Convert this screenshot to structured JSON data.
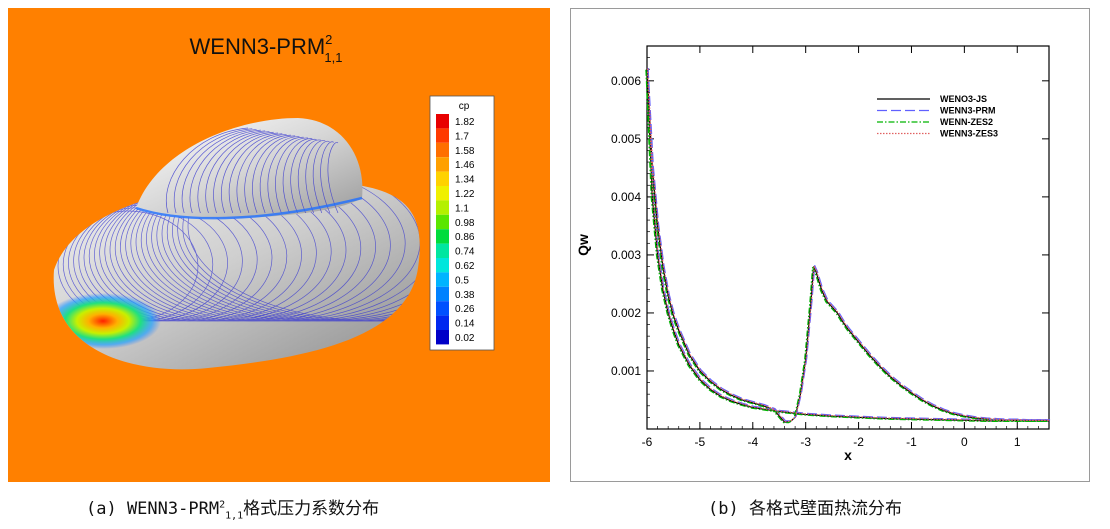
{
  "panel_a": {
    "title_main": "WENN3-PRM",
    "title_sup": "2",
    "title_sub": "1,1",
    "background_color": "#FF8000",
    "colorbar": {
      "title": "cp",
      "levels": [
        "1.82",
        "1.7",
        "1.58",
        "1.46",
        "1.34",
        "1.22",
        "1.1",
        "0.98",
        "0.86",
        "0.74",
        "0.62",
        "0.5",
        "0.38",
        "0.26",
        "0.14",
        "0.02"
      ],
      "colors": [
        "#e80000",
        "#ff3a00",
        "#ff6f00",
        "#ffa000",
        "#ffd200",
        "#f0f000",
        "#b4f000",
        "#5ae600",
        "#00dc3c",
        "#00e6a0",
        "#00e6dc",
        "#00b4ff",
        "#0082ff",
        "#0050ff",
        "#0028f0",
        "#0000c8"
      ]
    }
  },
  "panel_b": {
    "chart_data": {
      "type": "line",
      "xlabel": "x",
      "ylabel": "Qw",
      "xlim": [
        -6,
        1.6
      ],
      "ylim": [
        0,
        0.0066
      ],
      "x_ticks": [
        "-6",
        "-5",
        "-4",
        "-3",
        "-2",
        "-1",
        "0",
        "1"
      ],
      "y_ticks": [
        "0.001",
        "0.002",
        "0.003",
        "0.004",
        "0.005",
        "0.006"
      ],
      "legend_position": "top-right",
      "series": [
        {
          "name": "WENO3-JS",
          "color": "#000000",
          "dash": ""
        },
        {
          "name": "WENN3-PRM",
          "color": "#6060ff",
          "dash": "10,4"
        },
        {
          "name": "WENN-ZES2",
          "color": "#00b400",
          "dash": "6,2,1.5,2"
        },
        {
          "name": "WENN3-ZES3",
          "color": "#e06060",
          "dash": "1.5,1.5"
        }
      ],
      "curves": {
        "upper": {
          "x": [
            -6,
            -5.9,
            -5.8,
            -5.7,
            -5.6,
            -5.5,
            -5.4,
            -5.2,
            -5.0,
            -4.8,
            -4.6,
            -4.4,
            -4.2,
            -4.0,
            -3.8,
            -3.6,
            -3.4,
            -3.3,
            -3.2,
            -3.1,
            -3.0,
            -2.9,
            -2.85,
            -2.8,
            -2.7,
            -2.6,
            -2.5,
            -2.4,
            -2.3,
            -2.2,
            -2.0,
            -1.8,
            -1.6,
            -1.4,
            -1.2,
            -1.0,
            -0.8,
            -0.6,
            -0.4,
            -0.2,
            0.0,
            0.2,
            0.4,
            0.6,
            0.8,
            1.0,
            1.2,
            1.4,
            1.6
          ],
          "y": [
            0.0062,
            0.0045,
            0.0035,
            0.0028,
            0.0023,
            0.00195,
            0.0017,
            0.00128,
            0.001,
            0.00082,
            0.00068,
            0.00058,
            0.0005,
            0.00045,
            0.0004,
            0.00033,
            0.00012,
            0.00012,
            0.0002,
            0.0006,
            0.0012,
            0.0022,
            0.0028,
            0.0027,
            0.0024,
            0.0022,
            0.0021,
            0.002,
            0.00185,
            0.00172,
            0.0015,
            0.00128,
            0.00108,
            0.0009,
            0.00075,
            0.00062,
            0.0005,
            0.0004,
            0.00032,
            0.00026,
            0.00022,
            0.00019,
            0.00017,
            0.00016,
            0.00015,
            0.00015,
            0.00014,
            0.00014,
            0.00014
          ]
        },
        "lower": {
          "x": [
            -6,
            -5.9,
            -5.8,
            -5.7,
            -5.6,
            -5.5,
            -5.4,
            -5.2,
            -5.0,
            -4.8,
            -4.6,
            -4.4,
            -4.2,
            -4.0,
            -3.5,
            -3.0,
            -2.5,
            -2.0,
            -1.5,
            -1.0,
            -0.5,
            0.0,
            0.5,
            1.0,
            1.6
          ],
          "y": [
            0.0062,
            0.004,
            0.003,
            0.0024,
            0.002,
            0.0017,
            0.00145,
            0.0011,
            0.00085,
            0.00068,
            0.00056,
            0.00048,
            0.00042,
            0.00037,
            0.0003,
            0.00025,
            0.00022,
            0.0002,
            0.00018,
            0.00017,
            0.00016,
            0.00015,
            0.00014,
            0.00014,
            0.00014
          ]
        }
      }
    }
  },
  "captions": {
    "a_prefix": "(a) WENN3-PRM",
    "a_sup": "2",
    "a_sub": "1,1",
    "a_suffix": "格式压力系数分布",
    "b": "(b) 各格式壁面热流分布"
  }
}
